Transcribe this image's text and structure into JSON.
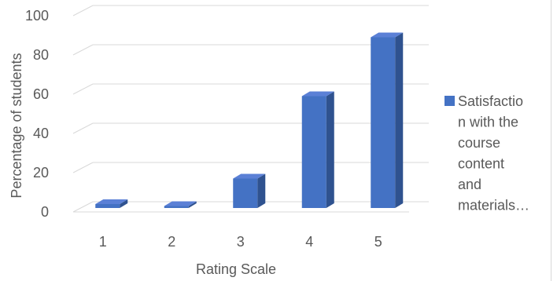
{
  "chart_data": {
    "type": "bar",
    "categories": [
      "1",
      "2",
      "3",
      "4",
      "5"
    ],
    "series": [
      {
        "name": "Satisfaction with the course content and materials…",
        "values": [
          4,
          3,
          17,
          59,
          89
        ]
      }
    ],
    "title": "",
    "xlabel": "Rating Scale",
    "ylabel": "Percentage of students",
    "ylim": [
      0,
      100
    ],
    "yticks": [
      "0",
      "20",
      "40",
      "60",
      "80",
      "100"
    ],
    "legend_lines": [
      "Satisfactio",
      "n with the",
      "course",
      "content",
      "and",
      "materials…"
    ],
    "legend_position": "right",
    "grid": true,
    "style": "3d-column",
    "colors": {
      "bar_front": "#4472c4",
      "bar_side": "#2f528f",
      "bar_top": "#5b80d6",
      "grid": "#d9d9d9",
      "text": "#595959"
    }
  }
}
